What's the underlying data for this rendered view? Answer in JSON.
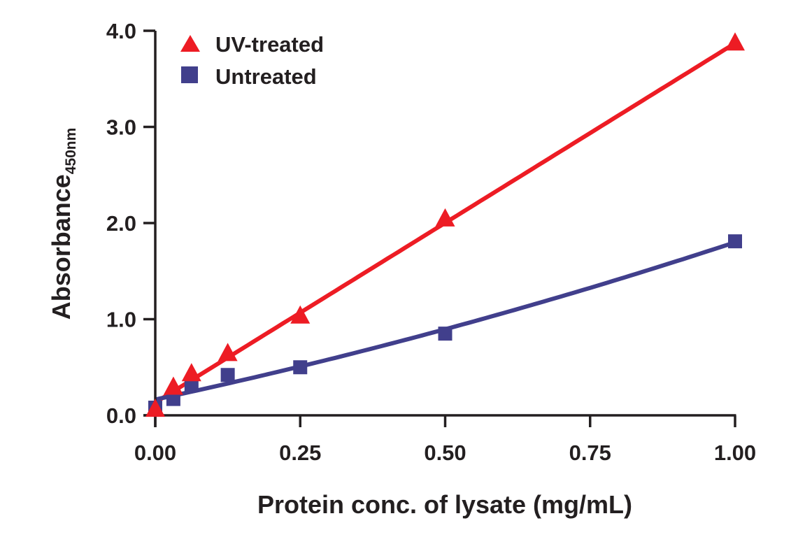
{
  "chart_data": {
    "type": "line",
    "title": "",
    "xlabel": "Protein conc. of lysate (mg/mL)",
    "ylabel": "Absorbance",
    "ylabel_subscript": "450nm",
    "xlim": [
      0,
      1.0
    ],
    "ylim": [
      0,
      4.0
    ],
    "grid": false,
    "legend_position": "top-left",
    "x_ticks": [
      0,
      0.25,
      0.5,
      0.75,
      1.0
    ],
    "x_tick_labels": [
      "0.00",
      "0.25",
      "0.50",
      "0.75",
      "1.00"
    ],
    "y_ticks": [
      0,
      1,
      2,
      3,
      4
    ],
    "y_tick_labels": [
      "0.0",
      "1.0",
      "2.0",
      "3.0",
      "4.0"
    ],
    "x": [
      0,
      0.03125,
      0.0625,
      0.125,
      0.25,
      0.5,
      1.0
    ],
    "series": [
      {
        "name": "UV-treated",
        "marker": "triangle",
        "color": "#ED1C24",
        "values": [
          0.05,
          0.28,
          0.42,
          0.63,
          1.02,
          2.03,
          3.86
        ],
        "fit": "linear"
      },
      {
        "name": "Untreated",
        "marker": "square",
        "color": "#413F8C",
        "values": [
          0.08,
          0.17,
          0.32,
          0.42,
          0.5,
          0.85,
          1.81
        ],
        "fit": "quadratic"
      }
    ]
  }
}
